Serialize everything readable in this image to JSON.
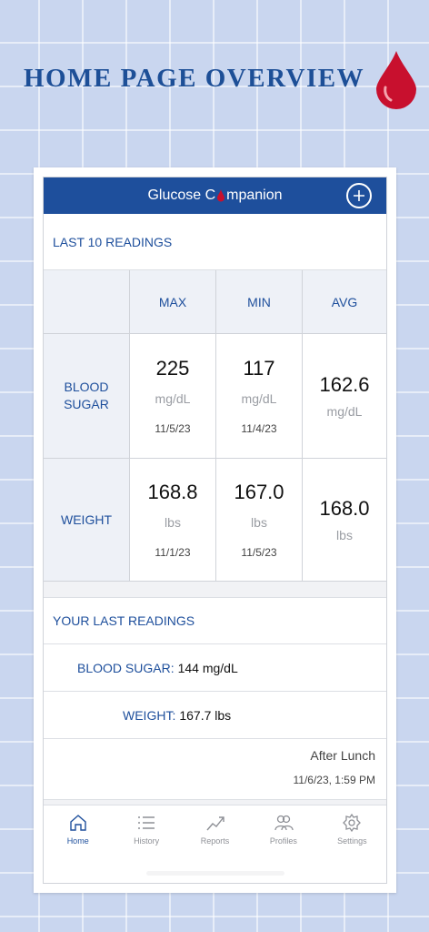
{
  "page": {
    "title": "HOME PAGE OVERVIEW"
  },
  "app": {
    "title_prefix": "Glucose C",
    "title_suffix": "mpanion",
    "add_icon": "plus-circle-icon"
  },
  "summary": {
    "heading": "LAST 10 READINGS",
    "columns": [
      "MAX",
      "MIN",
      "AVG"
    ],
    "rows": [
      {
        "label_line1": "BLOOD",
        "label_line2": "SUGAR",
        "max": {
          "value": "225",
          "unit": "mg/dL",
          "date": "11/5/23"
        },
        "min": {
          "value": "117",
          "unit": "mg/dL",
          "date": "11/4/23"
        },
        "avg": {
          "value": "162.6",
          "unit": "mg/dL"
        }
      },
      {
        "label_line1": "WEIGHT",
        "max": {
          "value": "168.8",
          "unit": "lbs",
          "date": "11/1/23"
        },
        "min": {
          "value": "167.0",
          "unit": "lbs",
          "date": "11/5/23"
        },
        "avg": {
          "value": "168.0",
          "unit": "lbs"
        }
      }
    ]
  },
  "last": {
    "heading": "YOUR LAST READINGS",
    "blood_sugar_label": "BLOOD SUGAR:",
    "blood_sugar_value": "144 mg/dL",
    "weight_label": "WEIGHT:",
    "weight_value": "167.7 lbs",
    "note": "After Lunch",
    "timestamp": "11/6/23, 1:59 PM"
  },
  "tabs": [
    {
      "label": "Home",
      "icon": "home-icon",
      "active": true
    },
    {
      "label": "History",
      "icon": "list-icon"
    },
    {
      "label": "Reports",
      "icon": "chart-icon"
    },
    {
      "label": "Profiles",
      "icon": "users-icon"
    },
    {
      "label": "Settings",
      "icon": "gear-icon"
    }
  ],
  "colors": {
    "brand": "#1e4f9c",
    "drop": "#c8102e",
    "background": "#c9d6ef"
  }
}
